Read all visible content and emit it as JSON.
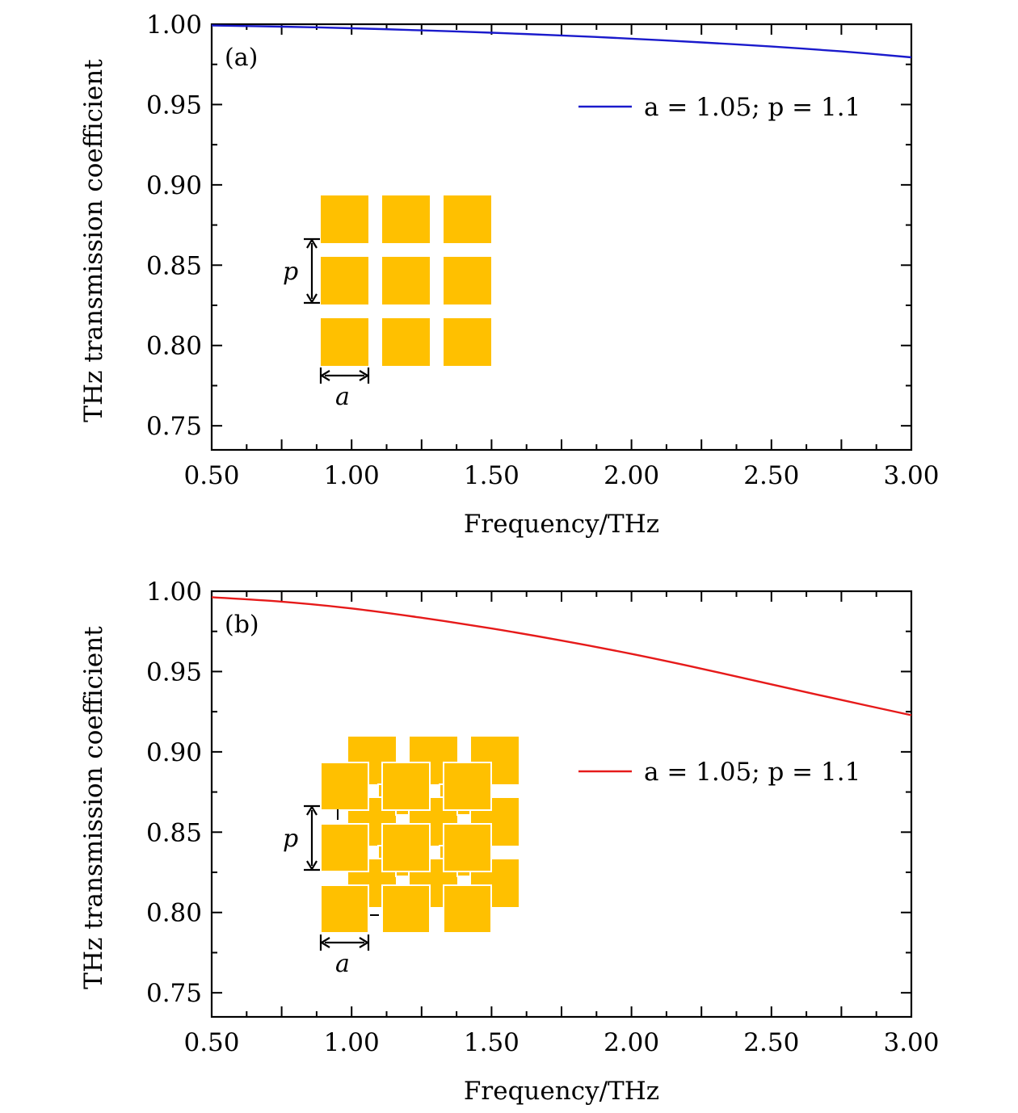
{
  "chart_data": [
    {
      "type": "line",
      "panel_label": "(a)",
      "xlabel": "Frequency/THz",
      "ylabel": "THz transmission coefficient",
      "xlim": [
        0.5,
        3.0
      ],
      "ylim": [
        0.735,
        1.0
      ],
      "x_ticks": [
        "0.50",
        "1.00",
        "1.50",
        "2.00",
        "2.50",
        "3.00"
      ],
      "y_ticks": [
        "1.00",
        "0.95",
        "0.90",
        "0.85",
        "0.80",
        "0.75"
      ],
      "legend_position": "top-right",
      "series": [
        {
          "name": "a = 1.05; p = 1.1",
          "legend_label": "a = 1.05; p = 1.1",
          "color": "#1a1acc",
          "x": [
            0.5,
            0.75,
            1.0,
            1.25,
            1.5,
            1.75,
            2.0,
            2.25,
            2.5,
            2.75,
            3.0
          ],
          "y": [
            0.9992,
            0.9985,
            0.9975,
            0.9962,
            0.9947,
            0.993,
            0.991,
            0.9887,
            0.9861,
            0.9831,
            0.9794
          ]
        }
      ],
      "inset": {
        "type": "square-array",
        "period_label": "p",
        "size_label": "a",
        "color": "#ffc000"
      }
    },
    {
      "type": "line",
      "panel_label": "(b)",
      "xlabel": "Frequency/THz",
      "ylabel": "THz transmission coefficient",
      "xlim": [
        0.5,
        3.0
      ],
      "ylim": [
        0.735,
        1.0
      ],
      "x_ticks": [
        "0.50",
        "1.00",
        "1.50",
        "2.00",
        "2.50",
        "3.00"
      ],
      "y_ticks": [
        "1.00",
        "0.95",
        "0.90",
        "0.85",
        "0.80",
        "0.75"
      ],
      "legend_position": "upper-right",
      "series": [
        {
          "name": "a = 1.05; p = 1.1",
          "legend_label": "a = 1.05; p = 1.1",
          "color": "#e61a1a",
          "x": [
            0.5,
            0.75,
            1.0,
            1.25,
            1.5,
            1.75,
            2.0,
            2.25,
            2.5,
            2.75,
            3.0
          ],
          "y": [
            0.9963,
            0.9935,
            0.9893,
            0.9835,
            0.9768,
            0.9693,
            0.961,
            0.9518,
            0.942,
            0.9323,
            0.9228
          ]
        }
      ],
      "inset": {
        "type": "double-layer-square-array",
        "period_label": "p",
        "size_label": "a",
        "color": "#ffc000"
      }
    }
  ]
}
